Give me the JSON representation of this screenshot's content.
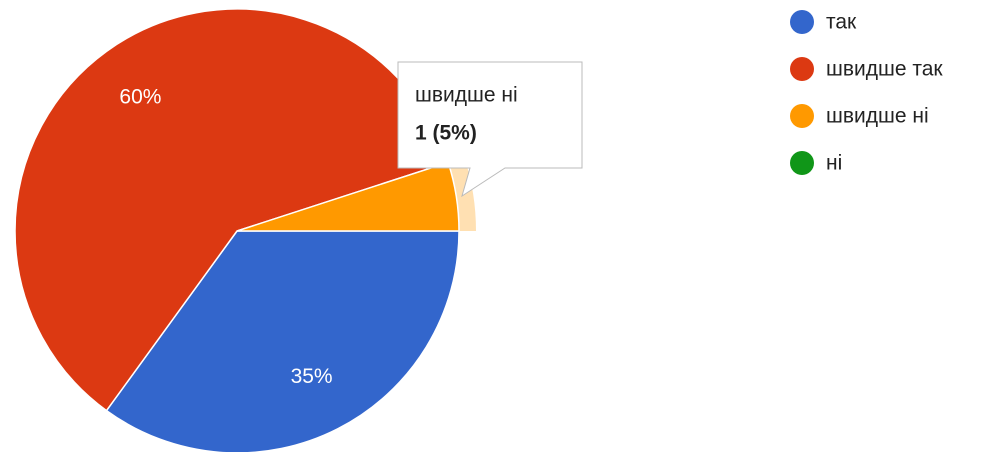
{
  "chart_data": {
    "type": "pie",
    "categories": [
      "так",
      "швидше так",
      "швидше ні",
      "ні"
    ],
    "values": [
      35,
      60,
      5,
      0
    ],
    "value_labels": [
      "35%",
      "60%",
      null,
      null
    ],
    "colors": [
      "#3366cc",
      "#dc3912",
      "#ff9900",
      "#109618"
    ],
    "start_angle": 90,
    "legend": "right",
    "tooltip": {
      "category": "швидше ні",
      "text": "1 (5%)"
    }
  }
}
